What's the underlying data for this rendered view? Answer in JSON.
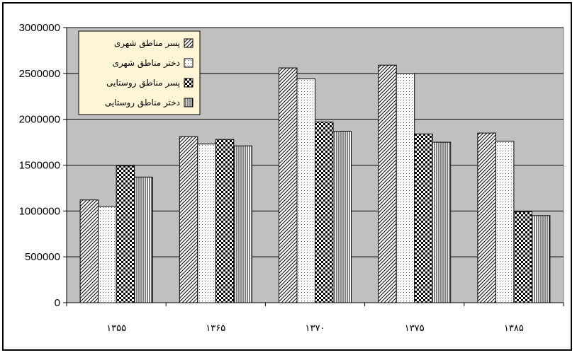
{
  "chart_data": {
    "type": "bar",
    "categories": [
      "۱۳۵۵",
      "۱۳۶۵",
      "۱۳۷۰",
      "۱۳۷۵",
      "۱۳۸۵"
    ],
    "series": [
      {
        "name": "پسر مناطق شهری",
        "pattern": "diagonal",
        "values": [
          1120000,
          1810000,
          2560000,
          2590000,
          1850000
        ]
      },
      {
        "name": "دختر مناطق شهری",
        "pattern": "dots",
        "values": [
          1050000,
          1730000,
          2440000,
          2500000,
          1760000
        ]
      },
      {
        "name": "پسر مناطق روستایی",
        "pattern": "checker",
        "values": [
          1490000,
          1780000,
          1970000,
          1840000,
          990000
        ]
      },
      {
        "name": "دختر مناطق روستایی",
        "pattern": "vertical",
        "values": [
          1370000,
          1710000,
          1870000,
          1750000,
          950000
        ]
      }
    ],
    "y_ticks": [
      "0",
      "500000",
      "1000000",
      "1500000",
      "2000000",
      "2500000",
      "3000000"
    ],
    "ylim": [
      0,
      3000000
    ],
    "grid": true,
    "legend_position": "top-left",
    "colors": {
      "plot_background": "#c0c0c0",
      "bar_fill": "#ffffff",
      "stroke": "#000000",
      "gridline": "#000000"
    }
  }
}
